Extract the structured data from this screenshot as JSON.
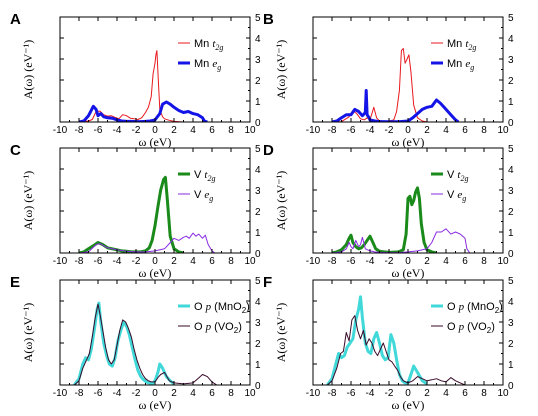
{
  "figure": {
    "panel_labels": [
      "A",
      "B",
      "C",
      "D",
      "E",
      "F"
    ],
    "x_ticks": [
      "-10",
      "-8",
      "-6",
      "-4",
      "-2",
      "0",
      "2",
      "4",
      "6",
      "8",
      "10"
    ],
    "y_ticks": [
      "0",
      "1",
      "2",
      "3",
      "4",
      "5"
    ]
  },
  "chart_data": [
    {
      "panel": "A",
      "type": "line",
      "xlabel": "ω (eV)",
      "ylabel": "A(ω) (eV⁻¹)",
      "xlim": [
        -10,
        10
      ],
      "ylim": [
        0,
        5
      ],
      "legend_position": "top-right",
      "series": [
        {
          "name": "Mn t2g",
          "legend_main": "Mn ",
          "legend_italic": "t",
          "legend_sub": "2g",
          "color": "#e8191f",
          "width": 1,
          "x": [
            -8,
            -7.5,
            -7,
            -6.6,
            -6.2,
            -5.8,
            -5.4,
            -5,
            -4.6,
            -4.2,
            -3.8,
            -3.4,
            -3,
            -2.6,
            -2.2,
            -1.8,
            -1.4,
            -1,
            -0.7,
            -0.4,
            -0.2,
            0,
            0.1,
            0.2,
            0.35,
            0.5,
            0.8,
            1,
            1.5,
            2,
            3
          ],
          "y": [
            0,
            0.03,
            0.05,
            0.12,
            0.5,
            0.52,
            0.35,
            0.28,
            0.3,
            0.22,
            0.15,
            0.35,
            0.3,
            0.18,
            0.15,
            0.12,
            0.2,
            0.45,
            0.7,
            1.2,
            2.3,
            2.8,
            3.2,
            3.4,
            2.0,
            0.6,
            0.25,
            0.15,
            0.08,
            0.03,
            0
          ]
        },
        {
          "name": "Mn eg",
          "legend_main": "Mn ",
          "legend_italic": "e",
          "legend_sub": "g",
          "color": "#1414e6",
          "width": 3,
          "x": [
            -8,
            -7.5,
            -7,
            -6.5,
            -6.2,
            -6,
            -5.7,
            -5.4,
            -5,
            -4.5,
            -4,
            -3.5,
            -3,
            -2.5,
            -2,
            -1.5,
            -1,
            -0.5,
            0,
            0.5,
            0.8,
            1.2,
            1.6,
            2,
            2.5,
            3,
            3.5,
            4,
            4.5,
            5,
            5.2,
            5.5
          ],
          "y": [
            0,
            0.05,
            0.3,
            0.75,
            0.6,
            0.3,
            0.4,
            0.25,
            0.2,
            0.18,
            0.1,
            0.05,
            0.03,
            0.03,
            0.02,
            0.02,
            0.03,
            0.05,
            0.1,
            0.4,
            0.85,
            0.95,
            0.85,
            0.7,
            0.55,
            0.45,
            0.5,
            0.4,
            0.35,
            0.2,
            0.05,
            0
          ]
        }
      ]
    },
    {
      "panel": "B",
      "type": "line",
      "xlabel": "ω (eV)",
      "ylabel": "A(ω) (eV⁻¹)",
      "xlim": [
        -10,
        10
      ],
      "ylim": [
        0,
        5
      ],
      "legend_position": "top-right",
      "series": [
        {
          "name": "Mn t2g",
          "legend_main": "Mn ",
          "legend_italic": "t",
          "legend_sub": "2g",
          "color": "#e8191f",
          "width": 1,
          "x": [
            -8,
            -7,
            -6.2,
            -5.8,
            -5.4,
            -5,
            -4.6,
            -4.3,
            -4,
            -3.6,
            -3.3,
            -3,
            -2.5,
            -2,
            -1.5,
            -1.2,
            -0.9,
            -0.7,
            -0.5,
            -0.3,
            -0.1,
            0.1,
            0.3,
            0.6,
            1,
            1.5,
            2
          ],
          "y": [
            0,
            0.02,
            0.25,
            0.55,
            0.4,
            0.15,
            0.1,
            0.2,
            0.1,
            0.7,
            0.2,
            0.05,
            0.03,
            0.05,
            0.1,
            0.5,
            1.5,
            3.4,
            3.5,
            2.8,
            3.0,
            3.2,
            2.4,
            0.8,
            0.2,
            0.05,
            0
          ]
        },
        {
          "name": "Mn eg",
          "legend_main": "Mn ",
          "legend_italic": "e",
          "legend_sub": "g",
          "color": "#1414e6",
          "width": 3,
          "x": [
            -8,
            -7.5,
            -7,
            -6.5,
            -6,
            -5.6,
            -5.2,
            -4.8,
            -4.5,
            -4.4,
            -4.3,
            -4.1,
            -4,
            -3.5,
            -3,
            -2,
            -1,
            0,
            0.5,
            1,
            1.5,
            2,
            2.5,
            3,
            3.4,
            3.8,
            4.2,
            4.6,
            5,
            5.3
          ],
          "y": [
            0,
            0.05,
            0.2,
            0.35,
            0.35,
            0.6,
            0.5,
            0.3,
            0.45,
            1.5,
            0.35,
            0.2,
            0.1,
            0.05,
            0.02,
            0.01,
            0.01,
            0.05,
            0.2,
            0.4,
            0.6,
            0.7,
            0.75,
            1.05,
            0.9,
            0.7,
            0.5,
            0.3,
            0.1,
            0
          ]
        }
      ]
    },
    {
      "panel": "C",
      "type": "line",
      "xlabel": "ω (eV)",
      "ylabel": "A(ω) (eV⁻¹)",
      "xlim": [
        -10,
        10
      ],
      "ylim": [
        0,
        5
      ],
      "legend_position": "top-right",
      "series": [
        {
          "name": "V t2g",
          "legend_main": "V ",
          "legend_italic": "t",
          "legend_sub": "2g",
          "color": "#1a8a1a",
          "width": 3,
          "x": [
            -8,
            -7.5,
            -7,
            -6.5,
            -6,
            -5.5,
            -5,
            -4.5,
            -4,
            -3.5,
            -3,
            -2.5,
            -2,
            -1.5,
            -1,
            -0.6,
            -0.3,
            0,
            0.3,
            0.6,
            0.9,
            1.1,
            1.3,
            1.6,
            2,
            2.5,
            3
          ],
          "y": [
            0,
            0.05,
            0.2,
            0.35,
            0.5,
            0.4,
            0.25,
            0.2,
            0.15,
            0.1,
            0.08,
            0.06,
            0.05,
            0.05,
            0.1,
            0.25,
            0.6,
            1.3,
            2.2,
            3.0,
            3.5,
            3.6,
            2.5,
            0.8,
            0.2,
            0.05,
            0
          ]
        },
        {
          "name": "V eg",
          "legend_main": "V ",
          "legend_italic": "e",
          "legend_sub": "g",
          "color": "#8a2be2",
          "width": 1,
          "x": [
            -8,
            -7,
            -6.2,
            -5.8,
            -5.4,
            -5,
            -4,
            -3,
            -2,
            -1,
            0,
            1,
            1.5,
            2,
            2.5,
            3,
            3.3,
            3.6,
            4,
            4.3,
            4.6,
            5,
            5.3,
            5.6,
            6,
            6.3
          ],
          "y": [
            0,
            0.05,
            0.4,
            0.45,
            0.35,
            0.25,
            0.15,
            0.08,
            0.05,
            0.05,
            0.1,
            0.2,
            0.45,
            0.7,
            0.6,
            0.75,
            0.8,
            0.7,
            0.95,
            0.8,
            0.9,
            0.7,
            0.85,
            0.4,
            0.1,
            0
          ]
        }
      ]
    },
    {
      "panel": "D",
      "type": "line",
      "xlabel": "ω (eV)",
      "ylabel": "A(ω) (eV⁻¹)",
      "xlim": [
        -10,
        10
      ],
      "ylim": [
        0,
        5
      ],
      "legend_position": "top-right",
      "series": [
        {
          "name": "V t2g",
          "legend_main": "V ",
          "legend_italic": "t",
          "legend_sub": "2g",
          "color": "#1a8a1a",
          "width": 3,
          "x": [
            -8,
            -7.5,
            -7,
            -6.5,
            -6.2,
            -6,
            -5.8,
            -5.5,
            -5.2,
            -4.9,
            -4.6,
            -4.3,
            -4,
            -3.7,
            -3.4,
            -3,
            -2,
            -1,
            -0.5,
            -0.2,
            0,
            0.2,
            0.4,
            0.6,
            0.8,
            1,
            1.2,
            1.4,
            1.7,
            2,
            2.5,
            3
          ],
          "y": [
            0,
            0.05,
            0.15,
            0.4,
            0.7,
            0.85,
            0.5,
            0.3,
            0.2,
            0.25,
            0.4,
            0.6,
            0.8,
            0.5,
            0.2,
            0.08,
            0.03,
            0.05,
            0.15,
            0.9,
            2.6,
            2.7,
            2.3,
            2.5,
            2.9,
            3.1,
            2.6,
            1.4,
            0.5,
            0.15,
            0.05,
            0
          ]
        },
        {
          "name": "V eg",
          "legend_main": "V ",
          "legend_italic": "e",
          "legend_sub": "g",
          "color": "#8a2be2",
          "width": 1,
          "x": [
            -8,
            -7,
            -6.5,
            -6.2,
            -6,
            -5.8,
            -5.5,
            -5.2,
            -5,
            -4.8,
            -4.5,
            -4,
            -3.5,
            -3,
            -2,
            -1,
            0,
            1,
            2,
            2.5,
            3,
            3.5,
            4,
            4.5,
            5,
            5.5,
            6,
            6.2,
            6.5
          ],
          "y": [
            0,
            0.05,
            0.2,
            0.5,
            0.3,
            0.2,
            0.6,
            0.3,
            0.4,
            0.75,
            0.2,
            0.1,
            0.05,
            0.03,
            0.02,
            0.02,
            0.05,
            0.1,
            0.2,
            0.5,
            1.0,
            1.0,
            1.15,
            0.9,
            1.0,
            0.9,
            0.7,
            0.2,
            0
          ]
        }
      ]
    },
    {
      "panel": "E",
      "type": "line",
      "xlabel": "ω (eV)",
      "ylabel": "A(ω) (eV⁻¹)",
      "xlim": [
        -10,
        10
      ],
      "ylim": [
        0,
        5
      ],
      "legend_position": "top-right",
      "series": [
        {
          "name": "O p (MnO2)",
          "legend_main": "O ",
          "legend_italic": "p",
          "legend_tail": " (MnO",
          "legend_sub": "2",
          "legend_after": ")",
          "color": "#40d8d8",
          "width": 3,
          "x": [
            -8.5,
            -8,
            -7.6,
            -7.3,
            -7,
            -6.7,
            -6.4,
            -6.1,
            -5.9,
            -5.7,
            -5.4,
            -5.1,
            -4.8,
            -4.5,
            -4.2,
            -3.9,
            -3.6,
            -3.3,
            -3,
            -2.7,
            -2.4,
            -2.1,
            -1.8,
            -1.5,
            -1.2,
            -0.9,
            -0.6,
            -0.3,
            0,
            0.3,
            0.5,
            0.8,
            1.2,
            1.6,
            2
          ],
          "y": [
            0,
            0.3,
            1.0,
            1.3,
            1.2,
            1.7,
            2.6,
            3.6,
            3.9,
            3.0,
            2.0,
            1.4,
            1.0,
            0.9,
            1.3,
            2.1,
            2.6,
            3.0,
            2.8,
            2.4,
            1.8,
            1.2,
            0.7,
            0.4,
            0.25,
            0.15,
            0.1,
            0.05,
            0.2,
            0.6,
            1.0,
            0.8,
            0.4,
            0.2,
            0.05
          ]
        },
        {
          "name": "O p (VO2)",
          "legend_main": "O ",
          "legend_italic": "p",
          "legend_tail": " (VO",
          "legend_sub": "2",
          "legend_after": ")",
          "color": "#3a0a2a",
          "width": 1,
          "x": [
            -8.5,
            -8,
            -7.6,
            -7.2,
            -6.9,
            -6.6,
            -6.3,
            -6,
            -5.8,
            -5.5,
            -5.2,
            -4.9,
            -4.6,
            -4.3,
            -4,
            -3.7,
            -3.4,
            -3.1,
            -2.8,
            -2.5,
            -2.2,
            -1.9,
            -1.6,
            -1.3,
            -1,
            -0.7,
            -0.4,
            0,
            0.3,
            0.6,
            1,
            1.5,
            2,
            3,
            4,
            4.5,
            5,
            5.5,
            6,
            6.5
          ],
          "y": [
            0,
            0.2,
            0.8,
            1.2,
            1.5,
            2.3,
            3.2,
            3.85,
            3.4,
            2.6,
            1.8,
            1.2,
            1.0,
            1.2,
            1.9,
            2.6,
            3.1,
            3.0,
            2.7,
            2.3,
            1.7,
            1.2,
            0.8,
            0.5,
            0.3,
            0.2,
            0.15,
            0.15,
            0.35,
            0.5,
            0.6,
            0.2,
            0.1,
            0.05,
            0.1,
            0.3,
            0.5,
            0.4,
            0.15,
            0
          ]
        }
      ]
    },
    {
      "panel": "F",
      "type": "line",
      "xlabel": "ω (eV)",
      "ylabel": "A(ω) (eV⁻¹)",
      "xlim": [
        -10,
        10
      ],
      "ylim": [
        0,
        5
      ],
      "legend_position": "top-right",
      "series": [
        {
          "name": "O p (MnO2)",
          "legend_main": "O ",
          "legend_italic": "p",
          "legend_tail": " (MnO",
          "legend_sub": "2",
          "legend_after": ")",
          "color": "#40d8d8",
          "width": 3,
          "x": [
            -8.5,
            -8,
            -7.6,
            -7.3,
            -7,
            -6.7,
            -6.4,
            -6.1,
            -5.8,
            -5.5,
            -5.2,
            -5,
            -4.8,
            -4.5,
            -4.2,
            -3.9,
            -3.6,
            -3.3,
            -3,
            -2.7,
            -2.4,
            -2.1,
            -1.8,
            -1.5,
            -1.2,
            -0.9,
            -0.6,
            -0.3,
            0,
            0.3,
            0.6,
            1,
            1.5,
            2
          ],
          "y": [
            0,
            0.3,
            1.0,
            1.5,
            1.3,
            1.4,
            1.8,
            2.0,
            2.2,
            3.1,
            3.6,
            4.2,
            3.2,
            2.0,
            1.6,
            1.5,
            2.2,
            2.5,
            2.0,
            1.4,
            1.2,
            1.3,
            2.4,
            2.0,
            1.2,
            0.5,
            0.2,
            0.1,
            0.1,
            0.5,
            0.9,
            0.6,
            0.2,
            0.05
          ]
        },
        {
          "name": "O p (VO2)",
          "legend_main": "O ",
          "legend_italic": "p",
          "legend_tail": " (VO",
          "legend_sub": "2",
          "legend_after": ")",
          "color": "#3a0a2a",
          "width": 1,
          "x": [
            -8.5,
            -8,
            -7.5,
            -7.1,
            -6.8,
            -6.5,
            -6.2,
            -5.9,
            -5.6,
            -5.3,
            -5,
            -4.7,
            -4.4,
            -4.1,
            -3.8,
            -3.5,
            -3.2,
            -2.9,
            -2.6,
            -2.3,
            -2,
            -1.7,
            -1.4,
            -1.1,
            -0.8,
            -0.5,
            0,
            0.5,
            1,
            1.5,
            2,
            2.5,
            3,
            3.5,
            4,
            4.5,
            5,
            5.5,
            6
          ],
          "y": [
            0,
            0.2,
            0.8,
            1.5,
            1.6,
            2.5,
            2.1,
            3.1,
            3.3,
            2.6,
            2.2,
            2.6,
            1.9,
            2.2,
            2.0,
            1.6,
            1.4,
            1.7,
            2.0,
            1.6,
            1.2,
            1.1,
            0.9,
            0.7,
            0.4,
            0.2,
            0.1,
            0.2,
            0.4,
            0.3,
            0.2,
            0.25,
            0.3,
            0.2,
            0.15,
            0.35,
            0.2,
            0.1,
            0
          ]
        }
      ]
    }
  ]
}
